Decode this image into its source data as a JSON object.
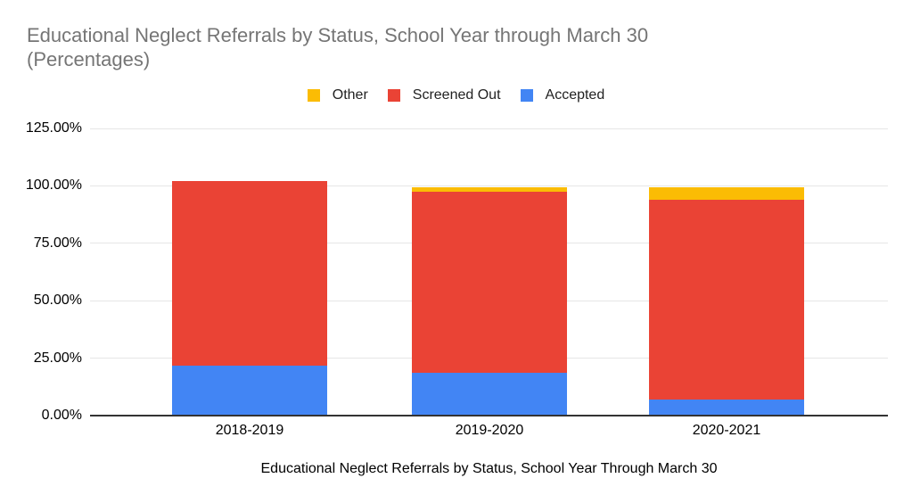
{
  "title": "Educational Neglect Referrals by Status, School Year through March 30 (Percentages)",
  "x_axis_caption": "Educational Neglect Referrals by Status, School Year Through March 30",
  "legend": [
    {
      "label": "Other",
      "color": "#FBBC04"
    },
    {
      "label": "Screened Out",
      "color": "#EA4335"
    },
    {
      "label": "Accepted",
      "color": "#4285F4"
    }
  ],
  "chart_data": {
    "type": "bar",
    "stacked": true,
    "title": "Educational Neglect Referrals by Status, School Year through March 30 (Percentages)",
    "categories": [
      "2018-2019",
      "2019-2020",
      "2020-2021"
    ],
    "series": [
      {
        "name": "Accepted",
        "color": "#4285F4",
        "values": [
          21.7,
          18.5,
          7.1
        ]
      },
      {
        "name": "Screened Out",
        "color": "#EA4335",
        "values": [
          80.4,
          79.0,
          86.8
        ]
      },
      {
        "name": "Other",
        "color": "#FBBC04",
        "values": [
          0,
          1.9,
          5.4
        ]
      }
    ],
    "xlabel": "Educational Neglect Referrals by Status, School Year Through March 30",
    "ylabel": "",
    "ylim": [
      0,
      125
    ],
    "yticks": [
      0,
      25,
      50,
      75,
      100,
      125
    ],
    "ytick_labels": [
      "0.00%",
      "25.00%",
      "50.00%",
      "75.00%",
      "100.00%",
      "125.00%"
    ],
    "grid": true,
    "legend_position": "top",
    "legend_order": [
      "Other",
      "Screened Out",
      "Accepted"
    ]
  },
  "colors": {
    "background": "#ffffff",
    "title_text": "#757575",
    "gridline": "#e6e6e6",
    "axis_line": "#333333",
    "label_text": "#000000"
  }
}
